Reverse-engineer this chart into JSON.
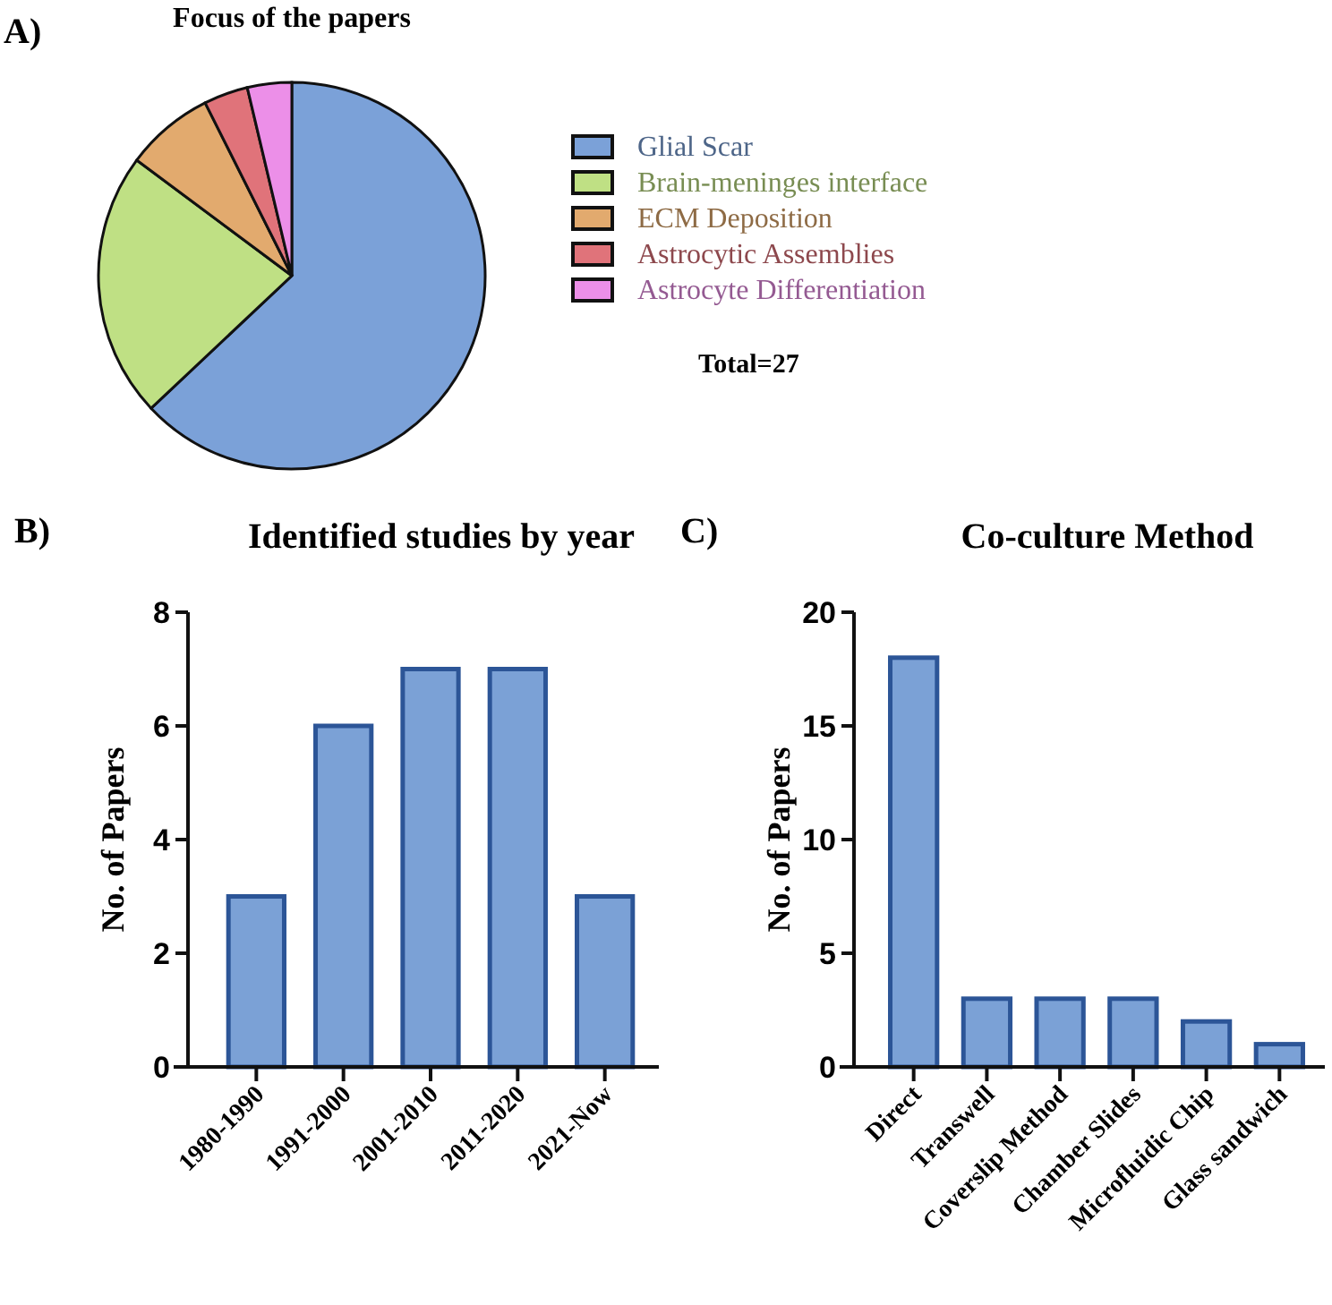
{
  "chart_data": [
    {
      "type": "pie",
      "title": "Focus of the papers",
      "categories": [
        "Glial  Scar",
        "Brain-meninges interface",
        "ECM Deposition",
        "Astrocytic Assemblies",
        "Astrocyte Differentiation"
      ],
      "values": [
        62.97,
        22.22,
        7.41,
        3.7,
        3.7
      ],
      "colors": [
        "#7ba1d8",
        "#bfe084",
        "#e2aa6e",
        "#e0737a",
        "#ec8fe8"
      ],
      "legend": "right",
      "annotations": [
        "A)",
        "Total=27"
      ]
    },
    {
      "type": "bar",
      "title": "Identified studies by year",
      "ylabel": "No. of Papers",
      "categories": [
        "1980-1990",
        "1991-2000",
        "2001-2010",
        "2011-2020",
        "2021-Now"
      ],
      "values": [
        3,
        6,
        7,
        7,
        3
      ],
      "color": "#7ba1d6",
      "ylim": [
        0,
        8
      ],
      "yticks": [
        0,
        2,
        4,
        6,
        8
      ],
      "grid": false,
      "annotations": [
        "B)"
      ]
    },
    {
      "type": "bar",
      "title": "Co-culture Method",
      "ylabel": "No. of Papers",
      "categories": [
        "Direct",
        "Transwell",
        "Coverslip Method",
        "Chamber Slides",
        "Microfluidic Chip",
        "Glass sandwich"
      ],
      "values": [
        18,
        3,
        3,
        3,
        2,
        1
      ],
      "color": "#7ba1d6",
      "ylim": [
        0,
        20
      ],
      "yticks": [
        0,
        5,
        10,
        15,
        20
      ],
      "grid": false,
      "annotations": [
        "C)"
      ]
    }
  ]
}
